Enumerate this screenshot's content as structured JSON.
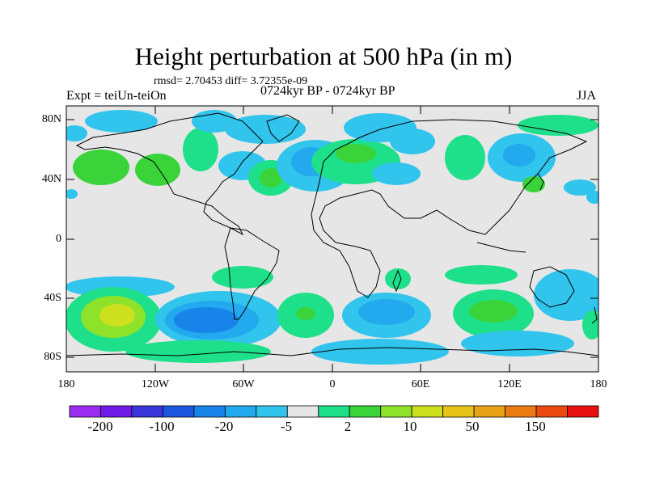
{
  "title": "Height perturbation at 500 hPa (in m)",
  "stats": "rmsd= 2.70453 diff= 3.72355e-09",
  "left_label": "Expt = teiUn-teiOn",
  "center_label": "0724kyr BP - 0724kyr BP",
  "right_label": "JJA",
  "lat_labels": [
    "80N",
    "40N",
    "0",
    "40S",
    "80S"
  ],
  "lon_labels": [
    "180",
    "120W",
    "60W",
    "0",
    "60E",
    "120E",
    "180"
  ],
  "colorbar": {
    "colors": [
      "#9a2df0",
      "#6f1ae6",
      "#3a35d9",
      "#1d57e0",
      "#1883e8",
      "#22a9ee",
      "#31c4ec",
      "#e6e6e6",
      "#1fe08a",
      "#3ad43a",
      "#8ee22a",
      "#cde01e",
      "#e7c41a",
      "#e8a318",
      "#e97b12",
      "#ea4a10",
      "#e81010"
    ],
    "labels": [
      "-200",
      "-100",
      "-20",
      "-5",
      "2",
      "10",
      "50",
      "150"
    ]
  },
  "colors": {
    "land_bg": "#e6e6e6",
    "light_blue": "#31c4ec",
    "mid_blue": "#22a9ee",
    "blue": "#1883e8",
    "light_green": "#1fe08a",
    "green": "#3ad43a",
    "yellow_green": "#cde01e"
  }
}
